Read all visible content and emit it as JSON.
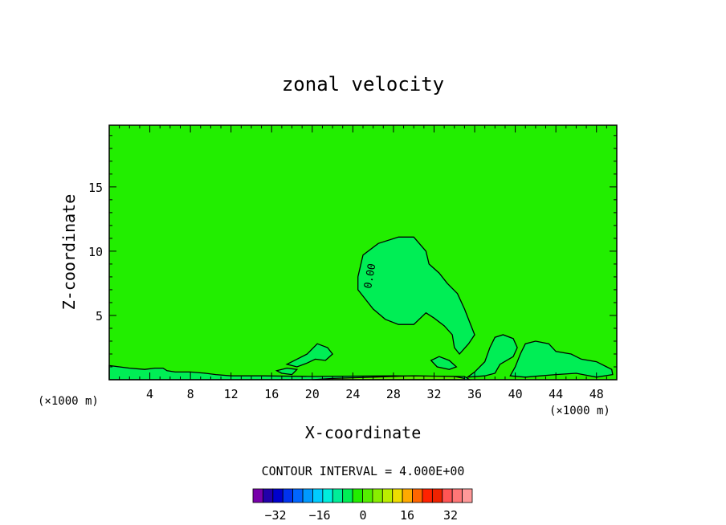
{
  "chart_data": {
    "type": "heatmap",
    "title": "zonal velocity",
    "xlabel": "X-coordinate",
    "ylabel": "Z-coordinate",
    "x_unit_left": "(×1000 m)",
    "x_unit_right": "(×1000 m)",
    "xlim": [
      0,
      50
    ],
    "ylim": [
      0,
      19.8
    ],
    "x_ticks": [
      "4",
      "8",
      "12",
      "16",
      "20",
      "24",
      "28",
      "32",
      "36",
      "40",
      "44",
      "48"
    ],
    "y_ticks": [
      "5",
      "10",
      "15"
    ],
    "background_color": "#22ee00",
    "contour_label": "0.00",
    "contour_interval_text": "CONTOUR INTERVAL = 4.000E+00",
    "colorbar": {
      "colors": [
        "#7700aa",
        "#2200aa",
        "#0000cc",
        "#0033ee",
        "#0066ff",
        "#0099ff",
        "#00ccff",
        "#00eedd",
        "#00ee99",
        "#00ee55",
        "#22ee00",
        "#55ee00",
        "#88ee00",
        "#bbee00",
        "#eedd00",
        "#ffaa00",
        "#ff6600",
        "#ff2200",
        "#ee2200",
        "#ff5555",
        "#ff7777",
        "#ff9999"
      ],
      "tick_labels": [
        "−32",
        "−16",
        "0",
        "16",
        "32"
      ]
    },
    "regions": [
      {
        "name": "upper-blob",
        "color": "#00ee55",
        "points": [
          [
            24.5,
            8.0
          ],
          [
            25.0,
            9.7
          ],
          [
            26.5,
            10.6
          ],
          [
            28.5,
            11.1
          ],
          [
            30.0,
            11.1
          ],
          [
            31.2,
            10.0
          ],
          [
            31.5,
            9.0
          ],
          [
            32.5,
            8.3
          ],
          [
            33.3,
            7.5
          ],
          [
            34.3,
            6.7
          ],
          [
            35.0,
            5.5
          ],
          [
            35.5,
            4.5
          ],
          [
            36.0,
            3.5
          ],
          [
            35.4,
            2.8
          ],
          [
            34.5,
            2.0
          ],
          [
            34.0,
            2.5
          ],
          [
            33.8,
            3.5
          ],
          [
            33.0,
            4.2
          ],
          [
            32.0,
            4.8
          ],
          [
            31.2,
            5.2
          ],
          [
            30.0,
            4.3
          ],
          [
            28.5,
            4.3
          ],
          [
            27.2,
            4.7
          ],
          [
            26.0,
            5.5
          ],
          [
            25.0,
            6.5
          ],
          [
            24.5,
            7.0
          ]
        ]
      },
      {
        "name": "mid-patch-1",
        "color": "#00ee55",
        "points": [
          [
            17.5,
            1.2
          ],
          [
            18.5,
            1.6
          ],
          [
            19.5,
            2.0
          ],
          [
            20.5,
            2.8
          ],
          [
            21.5,
            2.5
          ],
          [
            22.0,
            2.0
          ],
          [
            21.3,
            1.5
          ],
          [
            20.3,
            1.6
          ],
          [
            19.5,
            1.3
          ],
          [
            18.5,
            1.0
          ]
        ]
      },
      {
        "name": "mid-patch-2",
        "color": "#00ee55",
        "points": [
          [
            16.5,
            0.7
          ],
          [
            17.5,
            0.9
          ],
          [
            18.5,
            0.8
          ],
          [
            18.0,
            0.4
          ],
          [
            17.0,
            0.5
          ]
        ]
      },
      {
        "name": "mid-patch-3",
        "color": "#00ee55",
        "points": [
          [
            31.7,
            1.5
          ],
          [
            32.5,
            1.8
          ],
          [
            33.5,
            1.5
          ],
          [
            34.2,
            1.0
          ],
          [
            33.5,
            0.8
          ],
          [
            32.3,
            1.0
          ]
        ]
      },
      {
        "name": "lower-right-1",
        "color": "#00ee55",
        "points": [
          [
            35.3,
            0.2
          ],
          [
            36.0,
            0.6
          ],
          [
            37.0,
            1.4
          ],
          [
            37.5,
            2.5
          ],
          [
            38.0,
            3.3
          ],
          [
            38.8,
            3.5
          ],
          [
            39.8,
            3.2
          ],
          [
            40.2,
            2.5
          ],
          [
            39.8,
            1.8
          ],
          [
            38.5,
            1.2
          ],
          [
            38.0,
            0.5
          ],
          [
            37.0,
            0.3
          ]
        ]
      },
      {
        "name": "lower-right-2",
        "color": "#00ee55",
        "points": [
          [
            39.5,
            0.3
          ],
          [
            40.0,
            1.0
          ],
          [
            40.5,
            2.0
          ],
          [
            41.0,
            2.8
          ],
          [
            42.0,
            3.0
          ],
          [
            43.3,
            2.8
          ],
          [
            44.0,
            2.2
          ],
          [
            45.5,
            2.0
          ],
          [
            46.5,
            1.6
          ],
          [
            48.0,
            1.4
          ],
          [
            49.0,
            1.0
          ],
          [
            49.5,
            0.8
          ],
          [
            49.6,
            0.4
          ],
          [
            48.0,
            0.2
          ],
          [
            46.0,
            0.5
          ],
          [
            44.0,
            0.4
          ],
          [
            42.5,
            0.3
          ],
          [
            41.0,
            0.2
          ]
        ]
      },
      {
        "name": "bottom-strip",
        "color": "#00ee55",
        "points": [
          [
            0,
            0.0
          ],
          [
            0,
            1.1
          ],
          [
            2.0,
            0.9
          ],
          [
            3.5,
            0.8
          ],
          [
            4.5,
            0.9
          ],
          [
            5.3,
            0.9
          ],
          [
            5.7,
            0.7
          ],
          [
            6.5,
            0.6
          ],
          [
            8.0,
            0.6
          ],
          [
            9.5,
            0.5
          ],
          [
            10.5,
            0.4
          ],
          [
            12.0,
            0.3
          ],
          [
            15.0,
            0.3
          ],
          [
            20.0,
            0.25
          ],
          [
            28.0,
            0.3
          ],
          [
            35.0,
            0.25
          ],
          [
            35.5,
            0.0
          ]
        ]
      },
      {
        "name": "bottom-yellow",
        "color": "#55ee00",
        "points": [
          [
            20.0,
            0.0
          ],
          [
            22.0,
            0.1
          ],
          [
            26.0,
            0.2
          ],
          [
            30.0,
            0.3
          ],
          [
            34.0,
            0.25
          ],
          [
            35.0,
            0.1
          ],
          [
            35.0,
            0.0
          ]
        ]
      }
    ],
    "legend": "bottom"
  }
}
